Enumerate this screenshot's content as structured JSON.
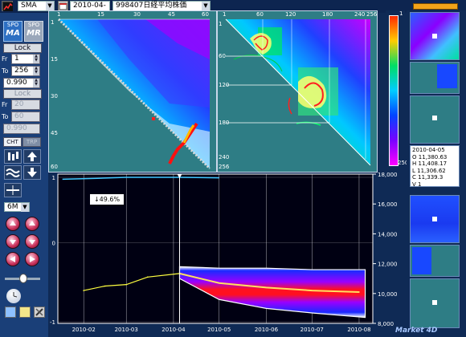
{
  "toolbar": {
    "indicator": "SMA",
    "date": "2010-04-05",
    "symbol": "998407日経平均株価"
  },
  "left_panel": {
    "logo_top": "SPO",
    "logo_ma": "MA",
    "logo_mr": "MR",
    "lock_label": "Lock",
    "lock2_label": "Lock",
    "from_label": "Fr",
    "to_label": "To",
    "from_value": "1",
    "to_value": "256",
    "ratio_value": "0.990",
    "from2_value": "20",
    "to2_value": "60",
    "ratio2_value": "0.990",
    "tab_cht": "CHT",
    "tab_trp": "TRP",
    "period": "6M"
  },
  "heatmap_left": {
    "top_ticks": [
      "1",
      "15",
      "30",
      "45",
      "60"
    ],
    "left_ticks": [
      "1",
      "15",
      "30",
      "45",
      "60"
    ]
  },
  "heatmap_right": {
    "top_ticks": [
      "1",
      "60",
      "120",
      "180",
      "240",
      "256"
    ],
    "left_ticks": [
      "1",
      "60",
      "120",
      "180",
      "240",
      "256"
    ]
  },
  "colorbar": {
    "top_label": "1",
    "bottom_label": "250",
    "colors": [
      "#ff2a00",
      "#ffcc00",
      "#00dd66",
      "#00ccff",
      "#0044ff",
      "#7a00ff",
      "#ff00ff"
    ]
  },
  "price_chart": {
    "left_axis": [
      "1",
      "0",
      "-1"
    ],
    "right_axis": [
      "18,000",
      "16,000",
      "14,000",
      "12,000",
      "10,000",
      "8,000"
    ],
    "x_axis": [
      "2010-02",
      "2010-03",
      "2010-04",
      "2010-05",
      "2010-06",
      "2010-07",
      "2010-08"
    ],
    "annotation": "↓49.6%",
    "cursor_date": "2010-04-05"
  },
  "quote": {
    "date": "2010-04-05",
    "open": "O 11,380.63",
    "high": "H 11,408.17",
    "low": "L 11,306.62",
    "close": "C 11,339.3",
    "volume": "V 1"
  },
  "brand": "Market 4D",
  "chart_data": {
    "type": "line",
    "xlabel": "",
    "ylabel": "",
    "x_ticks": [
      "2010-02",
      "2010-03",
      "2010-04",
      "2010-05",
      "2010-06",
      "2010-07",
      "2010-08"
    ],
    "ylim": [
      8000,
      18000
    ],
    "series": [
      {
        "name": "",
        "x": [
          "2010-02-01",
          "2010-02-15",
          "2010-03-01",
          "2010-03-15",
          "2010-04-05"
        ],
        "values": [
          10200,
          10500,
          10600,
          11100,
          11340
        ]
      },
      {
        "name": "",
        "x": [
          "2010-04-05",
          "2010-05-01",
          "2010-06-01",
          "2010-07-01",
          "2010-08-01"
        ],
        "values": [
          11340,
          10700,
          10400,
          10200,
          10100
        ]
      }
    ]
  }
}
